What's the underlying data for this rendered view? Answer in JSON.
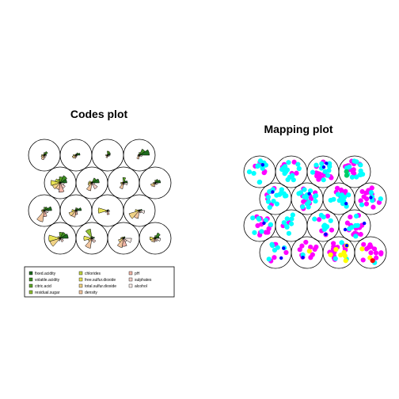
{
  "chart_data": [
    {
      "type": "other",
      "kind": "som-codes",
      "title": "Codes plot",
      "grid": "hexagonal 4x4",
      "legend": {
        "placement": "bottom",
        "entries": [
          {
            "label": "fixed.acidity",
            "color": "#1e6b1e"
          },
          {
            "label": "volatile.acidity",
            "color": "#3c8c22"
          },
          {
            "label": "citric.acid",
            "color": "#5fa82a"
          },
          {
            "label": "residual.sugar",
            "color": "#8fbf35"
          },
          {
            "label": "chlorides",
            "color": "#c2d442"
          },
          {
            "label": "free.sulfur.dioxide",
            "color": "#e8e254"
          },
          {
            "label": "total.sulfur.dioxide",
            "color": "#f0d284"
          },
          {
            "label": "density",
            "color": "#f2c6a0"
          },
          {
            "label": "pH",
            "color": "#f2b6a8"
          },
          {
            "label": "sulphates",
            "color": "#f4d0c8"
          },
          {
            "label": "alcohol",
            "color": "#fbeeea"
          }
        ]
      },
      "units": [
        {
          "unit": 1,
          "values": [
            0.6,
            0.5,
            0.45,
            0.1,
            0.2,
            0.85,
            0.8,
            0.2,
            0.1,
            0.3,
            0.2
          ]
        },
        {
          "unit": 2,
          "values": [
            0.2,
            0.1,
            0.15,
            0.7,
            0.1,
            0.6,
            0.3,
            0.75,
            0.2,
            0.35,
            0.1
          ]
        },
        {
          "unit": 3,
          "values": [
            0.1,
            0.15,
            0.1,
            0.05,
            0.15,
            0.2,
            0.4,
            0.7,
            0.6,
            0.3,
            0.6
          ]
        },
        {
          "unit": 4,
          "values": [
            0.3,
            0.45,
            0.2,
            0.1,
            0.1,
            0.4,
            0.35,
            0.3,
            0.2,
            0.25,
            0.4
          ]
        },
        {
          "unit": 5,
          "values": [
            0.55,
            0.3,
            0.25,
            0.05,
            0.15,
            0.2,
            0.2,
            0.85,
            0.45,
            0.25,
            0.3
          ]
        },
        {
          "unit": 6,
          "values": [
            0.4,
            0.2,
            0.2,
            0.1,
            0.05,
            0.3,
            0.55,
            0.5,
            0.3,
            0.15,
            0.1
          ]
        },
        {
          "unit": 7,
          "values": [
            0.05,
            0.1,
            0.05,
            0.05,
            0.05,
            0.7,
            0.2,
            0.1,
            0.3,
            0.1,
            0.15
          ]
        },
        {
          "unit": 8,
          "values": [
            0.2,
            0.1,
            0.05,
            0.05,
            0.1,
            0.3,
            0.8,
            0.6,
            0.15,
            0.2,
            0.4
          ]
        },
        {
          "unit": 9,
          "values": [
            0.5,
            0.6,
            0.45,
            0.3,
            0.4,
            0.7,
            0.6,
            0.5,
            0.7,
            0.45,
            0.3
          ]
        },
        {
          "unit": 10,
          "values": [
            0.55,
            0.4,
            0.1,
            0.05,
            0.2,
            0.25,
            0.3,
            0.6,
            0.15,
            0.5,
            0.2
          ]
        },
        {
          "unit": 11,
          "values": [
            0.3,
            0.2,
            0.4,
            0.05,
            0.1,
            0.2,
            0.2,
            0.45,
            0.15,
            0.1,
            0.3
          ]
        },
        {
          "unit": 12,
          "values": [
            0.4,
            0.3,
            0.2,
            0.05,
            0.05,
            0.15,
            0.35,
            0.3,
            0.1,
            0.15,
            0.2
          ]
        },
        {
          "unit": 13,
          "values": [
            0.15,
            0.3,
            0.2,
            0.1,
            0.05,
            0.2,
            0.25,
            0.35,
            0.2,
            0.1,
            0.15
          ]
        },
        {
          "unit": 14,
          "values": [
            0.3,
            0.2,
            0.1,
            0.05,
            0.05,
            0.2,
            0.3,
            0.25,
            0.15,
            0.1,
            0.1
          ]
        },
        {
          "unit": 15,
          "values": [
            0.2,
            0.25,
            0.3,
            0.05,
            0.05,
            0.15,
            0.1,
            0.2,
            0.1,
            0.1,
            0.15
          ]
        },
        {
          "unit": 16,
          "values": [
            0.75,
            0.5,
            0.2,
            0.05,
            0.1,
            0.1,
            0.15,
            0.3,
            0.1,
            0.1,
            0.2
          ]
        }
      ]
    },
    {
      "type": "scatter",
      "kind": "som-mapping",
      "title": "Mapping plot",
      "grid": "hexagonal 4x4",
      "point_colors": [
        "#ff00ff",
        "#00ffff",
        "#ffff00",
        "#0000ff",
        "#00cc66",
        "#ff0000"
      ],
      "units": [
        {
          "unit": 1,
          "counts": [
            5,
            6,
            0,
            2,
            0,
            0
          ]
        },
        {
          "unit": 2,
          "counts": [
            10,
            1,
            1,
            1,
            0,
            0
          ]
        },
        {
          "unit": 3,
          "counts": [
            13,
            3,
            7,
            1,
            0,
            0
          ]
        },
        {
          "unit": 4,
          "counts": [
            12,
            1,
            2,
            0,
            0,
            1
          ]
        },
        {
          "unit": 5,
          "counts": [
            12,
            7,
            0,
            1,
            0,
            0
          ]
        },
        {
          "unit": 6,
          "counts": [
            2,
            8,
            0,
            0,
            0,
            0
          ]
        },
        {
          "unit": 7,
          "counts": [
            5,
            9,
            0,
            1,
            0,
            0
          ]
        },
        {
          "unit": 8,
          "counts": [
            12,
            6,
            0,
            2,
            0,
            0
          ]
        },
        {
          "unit": 9,
          "counts": [
            6,
            14,
            0,
            1,
            0,
            0
          ]
        },
        {
          "unit": 10,
          "counts": [
            10,
            14,
            0,
            1,
            0,
            0
          ]
        },
        {
          "unit": 11,
          "counts": [
            8,
            12,
            0,
            1,
            0,
            0
          ]
        },
        {
          "unit": 12,
          "counts": [
            14,
            5,
            0,
            1,
            0,
            0
          ]
        },
        {
          "unit": 13,
          "counts": [
            4,
            12,
            0,
            1,
            0,
            0
          ]
        },
        {
          "unit": 14,
          "counts": [
            5,
            14,
            0,
            0,
            0,
            0
          ]
        },
        {
          "unit": 15,
          "counts": [
            14,
            10,
            0,
            2,
            0,
            0
          ]
        },
        {
          "unit": 16,
          "counts": [
            10,
            12,
            0,
            1,
            2,
            0
          ]
        }
      ]
    }
  ]
}
